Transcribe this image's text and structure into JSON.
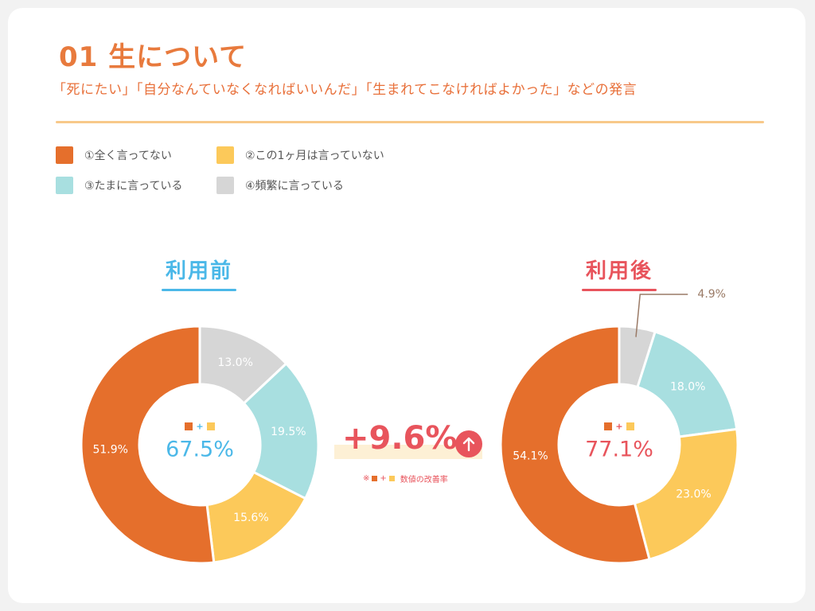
{
  "header": {
    "title": "01 生について",
    "subtitle": "「死にたい」「自分なんていなくなればいいんだ」「生まれてこなければよかった」などの発言"
  },
  "legend": [
    {
      "label": "①全く言ってない",
      "color": "#e56f2c"
    },
    {
      "label": "②この1ヶ月は言っていない",
      "color": "#fcc95a"
    },
    {
      "label": "③たまに言っている",
      "color": "#a8dfe0"
    },
    {
      "label": "④頻繁に言っている",
      "color": "#d6d6d6"
    }
  ],
  "colors": {
    "before_accent": "#4bb8e8",
    "after_accent": "#e8545c",
    "label": "#ffffff",
    "dark_label": "#9a7a66"
  },
  "improvement": {
    "value": "+9.6%",
    "note_prefix": "※",
    "note_plus": "+",
    "note_text": "数値の改善率"
  },
  "chart_data": [
    {
      "type": "pie",
      "title": "利用前",
      "center_plus": "+",
      "center_value": "67.5%",
      "slices": [
        {
          "category": "①全く言ってない",
          "value": 51.9,
          "label": "51.9%",
          "color": "#e56f2c"
        },
        {
          "category": "②この1ヶ月は言っていない",
          "value": 15.6,
          "label": "15.6%",
          "color": "#fcc95a"
        },
        {
          "category": "③たまに言っている",
          "value": 19.5,
          "label": "19.5%",
          "color": "#a8dfe0"
        },
        {
          "category": "④頻繁に言っている",
          "value": 13.0,
          "label": "13.0%",
          "color": "#d6d6d6"
        }
      ]
    },
    {
      "type": "pie",
      "title": "利用後",
      "center_plus": "+",
      "center_value": "77.1%",
      "slices": [
        {
          "category": "①全く言ってない",
          "value": 54.1,
          "label": "54.1%",
          "color": "#e56f2c"
        },
        {
          "category": "②この1ヶ月は言っていない",
          "value": 23.0,
          "label": "23.0%",
          "color": "#fcc95a"
        },
        {
          "category": "③たまに言っている",
          "value": 18.0,
          "label": "18.0%",
          "color": "#a8dfe0"
        },
        {
          "category": "④頻繁に言っている",
          "value": 4.9,
          "label": "4.9%",
          "color": "#d6d6d6"
        }
      ]
    }
  ]
}
